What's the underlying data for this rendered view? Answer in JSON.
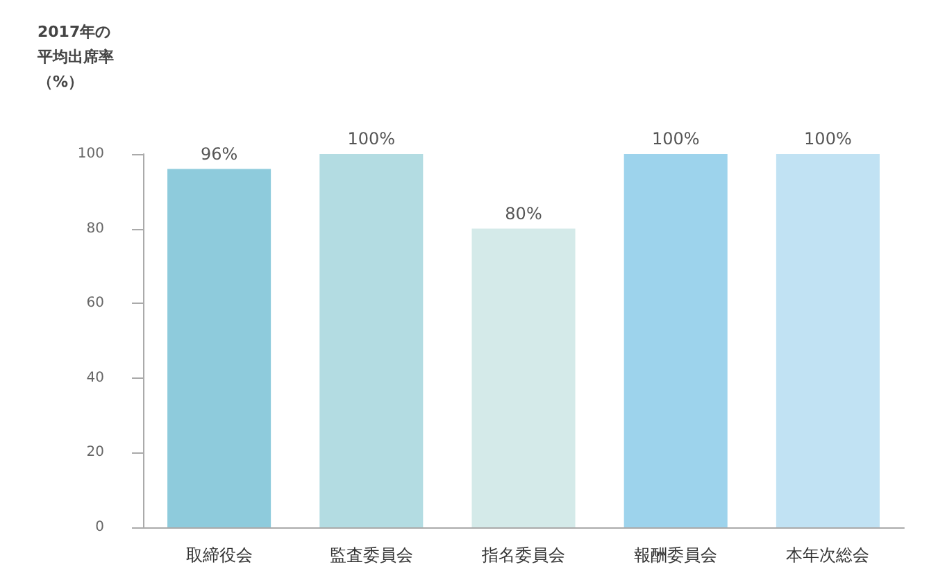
{
  "chart_data": {
    "type": "bar",
    "ylabel": "2017年の平均出席率（%）",
    "categories": [
      "取締役会",
      "監査委員会",
      "指名委員会",
      "報酬委員会",
      "本年次総会"
    ],
    "values": [
      96,
      100,
      80,
      100,
      100
    ],
    "colors": [
      "#8ecbdc",
      "#b3dce2",
      "#d4eae9",
      "#9dd3ec",
      "#c1e2f3"
    ],
    "value_labels": [
      "96%",
      "100%",
      "80%",
      "100%",
      "100%"
    ],
    "ylim": [
      0,
      100
    ],
    "yticks": [
      0,
      20,
      40,
      60,
      80,
      100
    ],
    "grid": false
  }
}
